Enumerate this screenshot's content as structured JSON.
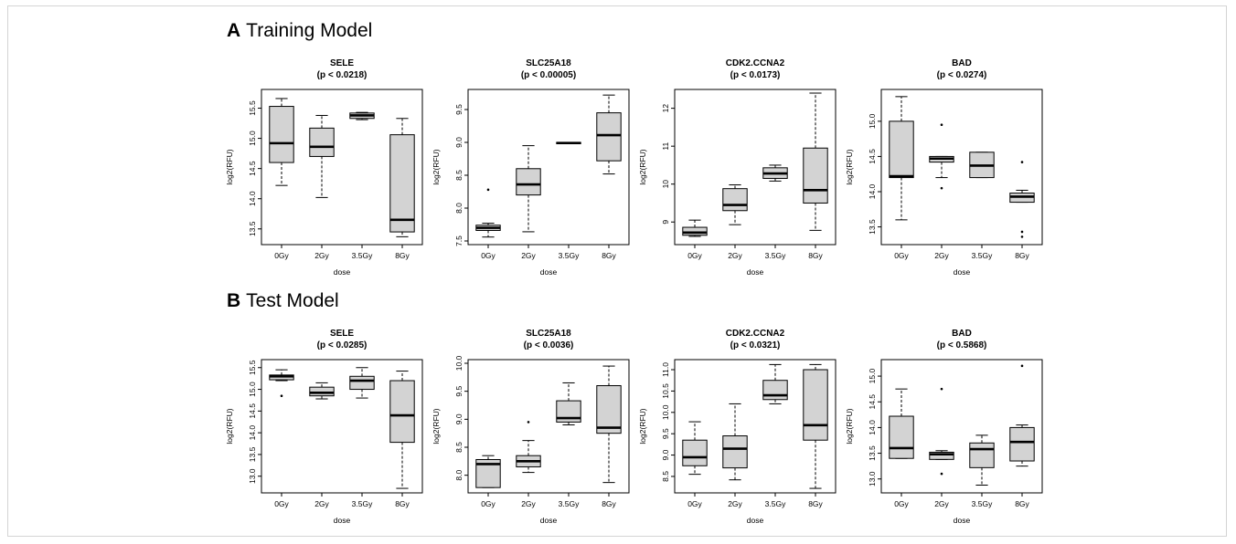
{
  "panels": [
    {
      "letter": "A",
      "title": "Training Model",
      "charts": [
        {
          "type": "box",
          "title": "SELE",
          "subtitle": "(p < 0.0218)",
          "xlabel": "dose",
          "ylabel": "log2(RFU)",
          "categories": [
            "0Gy",
            "2Gy",
            "3.5Gy",
            "8Gy"
          ],
          "ylim": [
            13.3,
            15.75
          ],
          "yticks": [
            13.5,
            14.0,
            14.5,
            15.0,
            15.5
          ],
          "boxes": [
            {
              "min": 14.22,
              "q1": 14.6,
              "median": 14.92,
              "q3": 15.53,
              "max": 15.66,
              "outliers": []
            },
            {
              "min": 14.02,
              "q1": 14.7,
              "median": 14.86,
              "q3": 15.17,
              "max": 15.38,
              "outliers": []
            },
            {
              "min": 15.31,
              "q1": 15.33,
              "median": 15.38,
              "q3": 15.42,
              "max": 15.43,
              "outliers": []
            },
            {
              "min": 13.37,
              "q1": 13.45,
              "median": 13.65,
              "q3": 15.06,
              "max": 15.33,
              "outliers": []
            }
          ]
        },
        {
          "type": "box",
          "title": "SLC25A18",
          "subtitle": "(p < 0.00005)",
          "xlabel": "dose",
          "ylabel": "log2(RFU)",
          "categories": [
            "0Gy",
            "2Gy",
            "3.5Gy",
            "8Gy"
          ],
          "ylim": [
            7.5,
            9.75
          ],
          "yticks": [
            7.5,
            8.0,
            8.5,
            9.0,
            9.5
          ],
          "boxes": [
            {
              "min": 7.56,
              "q1": 7.66,
              "median": 7.7,
              "q3": 7.74,
              "max": 7.77,
              "outliers": [
                8.28
              ]
            },
            {
              "min": 7.64,
              "q1": 8.2,
              "median": 8.36,
              "q3": 8.6,
              "max": 8.95,
              "outliers": []
            },
            {
              "min": 8.98,
              "q1": 8.98,
              "median": 8.99,
              "q3": 9.0,
              "max": 9.0,
              "outliers": []
            },
            {
              "min": 8.52,
              "q1": 8.72,
              "median": 9.11,
              "q3": 9.45,
              "max": 9.72,
              "outliers": []
            }
          ]
        },
        {
          "type": "box",
          "title": "CDK2.CCNA2",
          "subtitle": "(p < 0.0173)",
          "xlabel": "dose",
          "ylabel": "log2(RFU)",
          "categories": [
            "0Gy",
            "2Gy",
            "3.5Gy",
            "8Gy"
          ],
          "ylim": [
            8.5,
            12.4
          ],
          "yticks": [
            9,
            10,
            11,
            12
          ],
          "boxes": [
            {
              "min": 8.62,
              "q1": 8.65,
              "median": 8.72,
              "q3": 8.86,
              "max": 9.05,
              "outliers": []
            },
            {
              "min": 8.93,
              "q1": 9.3,
              "median": 9.45,
              "q3": 9.88,
              "max": 9.98,
              "outliers": []
            },
            {
              "min": 10.08,
              "q1": 10.15,
              "median": 10.28,
              "q3": 10.43,
              "max": 10.5,
              "outliers": []
            },
            {
              "min": 8.78,
              "q1": 9.5,
              "median": 9.84,
              "q3": 10.95,
              "max": 12.4,
              "outliers": []
            }
          ]
        },
        {
          "type": "box",
          "title": "BAD",
          "subtitle": "(p < 0.0274)",
          "xlabel": "dose",
          "ylabel": "log2(RFU)",
          "categories": [
            "0Gy",
            "2Gy",
            "3.5Gy",
            "8Gy"
          ],
          "ylim": [
            13.3,
            15.4
          ],
          "yticks": [
            13.5,
            14.0,
            14.5,
            15.0
          ],
          "boxes": [
            {
              "min": 13.6,
              "q1": 14.2,
              "median": 14.22,
              "q3": 15.0,
              "max": 15.35,
              "outliers": []
            },
            {
              "min": 14.2,
              "q1": 14.42,
              "median": 14.47,
              "q3": 14.5,
              "max": 14.5,
              "outliers": [
                14.95,
                14.05
              ]
            },
            {
              "min": 14.2,
              "q1": 14.2,
              "median": 14.37,
              "q3": 14.56,
              "max": 14.56,
              "outliers": []
            },
            {
              "min": 13.85,
              "q1": 13.85,
              "median": 13.93,
              "q3": 13.98,
              "max": 14.02,
              "outliers": [
                14.42,
                13.43,
                13.36
              ]
            }
          ]
        }
      ]
    },
    {
      "letter": "B",
      "title": "Test Model",
      "charts": [
        {
          "type": "box",
          "title": "SELE",
          "subtitle": "(p < 0.0285)",
          "xlabel": "dose",
          "ylabel": "log2(RFU)",
          "categories": [
            "0Gy",
            "2Gy",
            "3.5Gy",
            "8Gy"
          ],
          "ylim": [
            12.7,
            15.6
          ],
          "yticks": [
            13.0,
            13.5,
            14.0,
            14.5,
            15.0,
            15.5
          ],
          "boxes": [
            {
              "min": 15.2,
              "q1": 15.22,
              "median": 15.3,
              "q3": 15.33,
              "max": 15.45,
              "outliers": [
                14.85
              ]
            },
            {
              "min": 14.78,
              "q1": 14.85,
              "median": 14.92,
              "q3": 15.05,
              "max": 15.15,
              "outliers": []
            },
            {
              "min": 14.8,
              "q1": 15.0,
              "median": 15.2,
              "q3": 15.3,
              "max": 15.5,
              "outliers": []
            },
            {
              "min": 12.72,
              "q1": 13.78,
              "median": 14.4,
              "q3": 15.2,
              "max": 15.42,
              "outliers": []
            }
          ]
        },
        {
          "type": "box",
          "title": "SLC25A18",
          "subtitle": "(p < 0.0036)",
          "xlabel": "dose",
          "ylabel": "log2(RFU)",
          "categories": [
            "0Gy",
            "2Gy",
            "3.5Gy",
            "8Gy"
          ],
          "ylim": [
            7.75,
            10.0
          ],
          "yticks": [
            8.0,
            8.5,
            9.0,
            9.5,
            10.0
          ],
          "boxes": [
            {
              "min": 7.78,
              "q1": 7.78,
              "median": 8.2,
              "q3": 8.28,
              "max": 8.35,
              "outliers": []
            },
            {
              "min": 8.05,
              "q1": 8.15,
              "median": 8.25,
              "q3": 8.35,
              "max": 8.62,
              "outliers": [
                8.95
              ]
            },
            {
              "min": 8.9,
              "q1": 8.95,
              "median": 9.02,
              "q3": 9.33,
              "max": 9.65,
              "outliers": []
            },
            {
              "min": 7.87,
              "q1": 8.75,
              "median": 8.85,
              "q3": 9.6,
              "max": 9.95,
              "outliers": []
            }
          ]
        },
        {
          "type": "box",
          "title": "CDK2.CCNA2",
          "subtitle": "(p < 0.0321)",
          "xlabel": "dose",
          "ylabel": "log2(RFU)",
          "categories": [
            "0Gy",
            "2Gy",
            "3.5Gy",
            "8Gy"
          ],
          "ylim": [
            8.2,
            11.15
          ],
          "yticks": [
            8.5,
            9.0,
            9.5,
            10.0,
            10.5,
            11.0
          ],
          "boxes": [
            {
              "min": 8.55,
              "q1": 8.75,
              "median": 8.95,
              "q3": 9.35,
              "max": 9.78,
              "outliers": []
            },
            {
              "min": 8.42,
              "q1": 8.7,
              "median": 9.15,
              "q3": 9.45,
              "max": 10.2,
              "outliers": []
            },
            {
              "min": 10.2,
              "q1": 10.3,
              "median": 10.4,
              "q3": 10.75,
              "max": 11.12,
              "outliers": []
            },
            {
              "min": 8.22,
              "q1": 9.35,
              "median": 9.7,
              "q3": 11.0,
              "max": 11.12,
              "outliers": []
            }
          ]
        },
        {
          "type": "box",
          "title": "BAD",
          "subtitle": "(p < 0.5868)",
          "xlabel": "dose",
          "ylabel": "log2(RFU)",
          "categories": [
            "0Gy",
            "2Gy",
            "3.5Gy",
            "8Gy"
          ],
          "ylim": [
            12.8,
            15.25
          ],
          "yticks": [
            13.0,
            13.5,
            14.0,
            14.5,
            15.0
          ],
          "boxes": [
            {
              "min": 13.4,
              "q1": 13.4,
              "median": 13.6,
              "q3": 14.22,
              "max": 14.75,
              "outliers": []
            },
            {
              "min": 13.38,
              "q1": 13.38,
              "median": 13.48,
              "q3": 13.52,
              "max": 13.55,
              "outliers": [
                14.75,
                13.1
              ]
            },
            {
              "min": 12.88,
              "q1": 13.22,
              "median": 13.58,
              "q3": 13.7,
              "max": 13.85,
              "outliers": []
            },
            {
              "min": 13.25,
              "q1": 13.35,
              "median": 13.72,
              "q3": 14.0,
              "max": 14.05,
              "outliers": [
                15.2
              ]
            }
          ]
        }
      ]
    }
  ]
}
